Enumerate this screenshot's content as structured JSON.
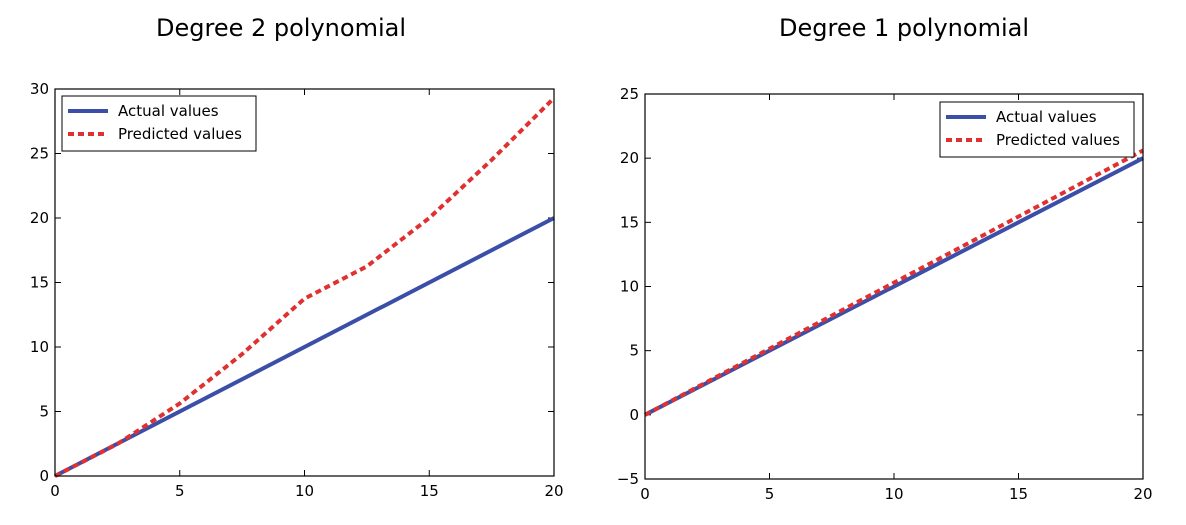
{
  "chart_data": [
    {
      "type": "line",
      "title": "Degree 2 polynomial",
      "xlim": [
        0,
        20
      ],
      "ylim": [
        0,
        30
      ],
      "xticks": [
        0,
        5,
        10,
        15,
        20
      ],
      "yticks": [
        0,
        5,
        10,
        15,
        20,
        25,
        30
      ],
      "legend_position": "top-left",
      "grid": false,
      "series": [
        {
          "name": "Actual values",
          "color": "#3b4fa8",
          "style": "solid",
          "x": [
            0,
            20
          ],
          "y": [
            0,
            20
          ]
        },
        {
          "name": "Predicted values",
          "color": "#e03030",
          "style": "dashed",
          "x": [
            0,
            2.5,
            5,
            7.5,
            10,
            12.5,
            15,
            17.5,
            20
          ],
          "y": [
            0,
            2.48,
            5.625,
            9.45,
            13.75,
            16.25,
            20,
            24.5,
            29.3
          ]
        }
      ]
    },
    {
      "type": "line",
      "title": "Degree 1 polynomial",
      "xlim": [
        0,
        20
      ],
      "ylim": [
        -5,
        25
      ],
      "xticks": [
        0,
        5,
        10,
        15,
        20
      ],
      "yticks": [
        -5,
        0,
        5,
        10,
        15,
        20,
        25
      ],
      "legend_position": "top-right",
      "grid": false,
      "series": [
        {
          "name": "Actual values",
          "color": "#3b4fa8",
          "style": "solid",
          "x": [
            0,
            20
          ],
          "y": [
            0,
            20
          ]
        },
        {
          "name": "Predicted values",
          "color": "#e03030",
          "style": "dashed",
          "x": [
            0,
            20
          ],
          "y": [
            0,
            20.6
          ]
        }
      ]
    }
  ]
}
